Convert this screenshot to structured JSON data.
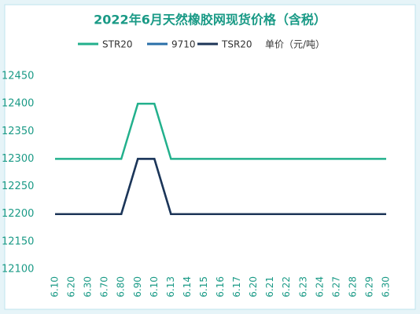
{
  "chart_data": {
    "type": "line",
    "title": "2022年6月天然橡胶网现货价格（含税）",
    "unit": "单价（元/吨）",
    "categories": [
      "6.10",
      "6.20",
      "6.30",
      "6.70",
      "6.80",
      "6.90",
      "6.10",
      "6.13",
      "6.14",
      "6.15",
      "6.16",
      "6.17",
      "6.20",
      "6.21",
      "6.22",
      "6.23",
      "6.24",
      "6.27",
      "6.28",
      "6.29",
      "6.30"
    ],
    "series": [
      {
        "name": "STR20",
        "color": "#22b08c",
        "values": [
          12300,
          12300,
          12300,
          12300,
          12300,
          12400,
          12400,
          12300,
          12300,
          12300,
          12300,
          12300,
          12300,
          12300,
          12300,
          12300,
          12300,
          12300,
          12300,
          12300,
          12300
        ]
      },
      {
        "name": "9710",
        "color": "#2a6fa8",
        "values": [
          12200,
          12200,
          12200,
          12200,
          12200,
          12300,
          12300,
          12200,
          12200,
          12200,
          12200,
          12200,
          12200,
          12200,
          12200,
          12200,
          12200,
          12200,
          12200,
          12200,
          12200
        ]
      },
      {
        "name": "TSR20",
        "color": "#1d3557",
        "values": [
          12200,
          12200,
          12200,
          12200,
          12200,
          12300,
          12300,
          12200,
          12200,
          12200,
          12200,
          12200,
          12200,
          12200,
          12200,
          12200,
          12200,
          12200,
          12200,
          12200,
          12200
        ]
      }
    ],
    "ylim": [
      12100,
      12450
    ],
    "yticks": [
      12100,
      12150,
      12200,
      12250,
      12300,
      12350,
      12400,
      12450
    ]
  }
}
